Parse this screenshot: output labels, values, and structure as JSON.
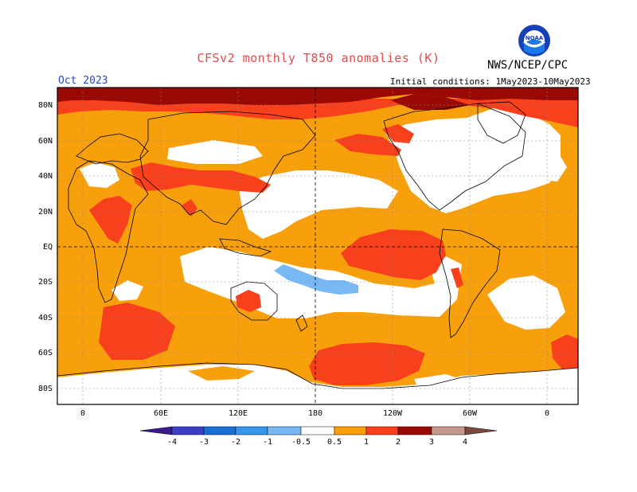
{
  "header": {
    "title": "CFSv2 monthly T850 anomalies (K)",
    "org": "NWS/NCEP/CPC",
    "month": "Oct 2023",
    "initial_conditions": "Initial conditions: 1May2023-10May2023",
    "logo_text": "NOAA"
  },
  "map": {
    "lat_ticks": [
      "80N",
      "60N",
      "40N",
      "20N",
      "EQ",
      "20S",
      "40S",
      "60S",
      "80S"
    ],
    "lon_ticks": [
      "0",
      "60E",
      "120E",
      "180",
      "120W",
      "60W",
      "0"
    ]
  },
  "colorbar": {
    "labels": [
      "-4",
      "-3",
      "-2",
      "-1",
      "-0.5",
      "0.5",
      "1",
      "2",
      "3",
      "4"
    ],
    "colors": {
      "lt_neg4": "#3a1a8c",
      "neg4_neg3": "#3b3fc6",
      "neg3_neg2": "#1c6fd2",
      "neg2_neg1": "#3a96e8",
      "neg1_neg05": "#78b8f4",
      "neutral": "#ffffff",
      "p05_1": "#f8a00c",
      "p1_2": "#f8401c",
      "p2_3": "#c01e10",
      "p3_4": "#9a0a04",
      "p4_gt": "#c49a8c",
      "gt": "#7a4a3a"
    }
  }
}
